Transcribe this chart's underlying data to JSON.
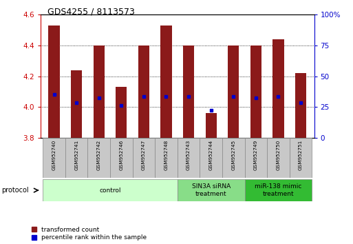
{
  "title": "GDS4255 / 8113573",
  "samples": [
    "GSM952740",
    "GSM952741",
    "GSM952742",
    "GSM952746",
    "GSM952747",
    "GSM952748",
    "GSM952743",
    "GSM952744",
    "GSM952745",
    "GSM952749",
    "GSM952750",
    "GSM952751"
  ],
  "bar_top": [
    4.53,
    4.24,
    4.4,
    4.13,
    4.4,
    4.53,
    4.4,
    3.96,
    4.4,
    4.4,
    4.44,
    4.22
  ],
  "bar_bottom": [
    3.8,
    3.8,
    3.8,
    3.8,
    3.8,
    3.8,
    3.8,
    3.8,
    3.8,
    3.8,
    3.8,
    3.8
  ],
  "blue_dot": [
    4.08,
    4.03,
    4.06,
    4.01,
    4.07,
    4.07,
    4.07,
    3.98,
    4.07,
    4.06,
    4.07,
    4.03
  ],
  "ylim": [
    3.8,
    4.6
  ],
  "yticks_left": [
    3.8,
    4.0,
    4.2,
    4.4,
    4.6
  ],
  "yticks_right": [
    0,
    25,
    50,
    75,
    100
  ],
  "bar_color": "#8B1A1A",
  "dot_color": "#0000CD",
  "groups": [
    {
      "label": "control",
      "start": 0,
      "end": 6,
      "color": "#CCFFCC"
    },
    {
      "label": "SIN3A siRNA\ntreatment",
      "start": 6,
      "end": 9,
      "color": "#88DD88"
    },
    {
      "label": "miR-138 mimic\ntreatment",
      "start": 9,
      "end": 12,
      "color": "#33BB33"
    }
  ],
  "protocol_label": "protocol",
  "legend1": "transformed count",
  "legend2": "percentile rank within the sample",
  "left_color": "#CC0000",
  "right_color": "#0000CC",
  "bar_width": 0.5
}
